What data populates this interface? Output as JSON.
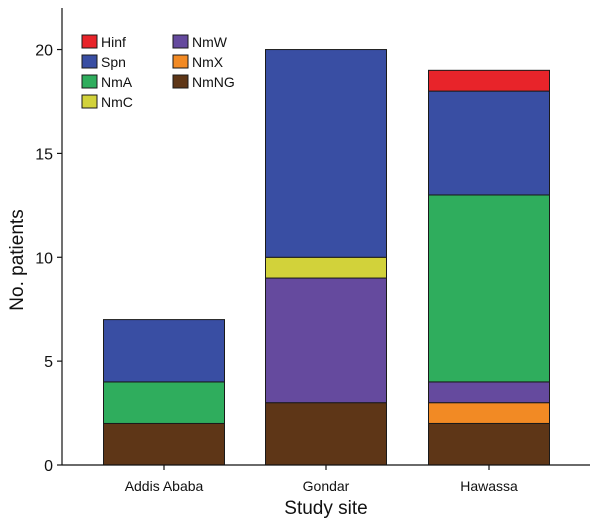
{
  "chart_data": {
    "type": "bar",
    "stacked": true,
    "xlabel": "Study site",
    "ylabel": "No. patients",
    "categories": [
      "Addis Ababa",
      "Gondar",
      "Hawassa"
    ],
    "ylim": [
      0,
      22
    ],
    "yticks": [
      0,
      5,
      10,
      15,
      20
    ],
    "grid": false,
    "legend": {
      "placement": "top-left",
      "columns": 2
    },
    "series": [
      {
        "name": "NmNG",
        "color": "#5e3617",
        "values": [
          2,
          3,
          2
        ]
      },
      {
        "name": "NmX",
        "color": "#f28a24",
        "values": [
          0,
          0,
          1
        ]
      },
      {
        "name": "NmW",
        "color": "#654a9e",
        "values": [
          0,
          6,
          1
        ]
      },
      {
        "name": "NmC",
        "color": "#d2d23a",
        "values": [
          0,
          1,
          0
        ]
      },
      {
        "name": "NmA",
        "color": "#2fad5d",
        "values": [
          2,
          0,
          9
        ]
      },
      {
        "name": "Spn",
        "color": "#394ea3",
        "values": [
          3,
          10,
          5
        ]
      },
      {
        "name": "Hinf",
        "color": "#e8242a",
        "values": [
          0,
          0,
          1
        ]
      }
    ],
    "legend_order": [
      "Hinf",
      "Spn",
      "NmA",
      "NmC",
      "NmW",
      "NmX",
      "NmNG"
    ]
  }
}
